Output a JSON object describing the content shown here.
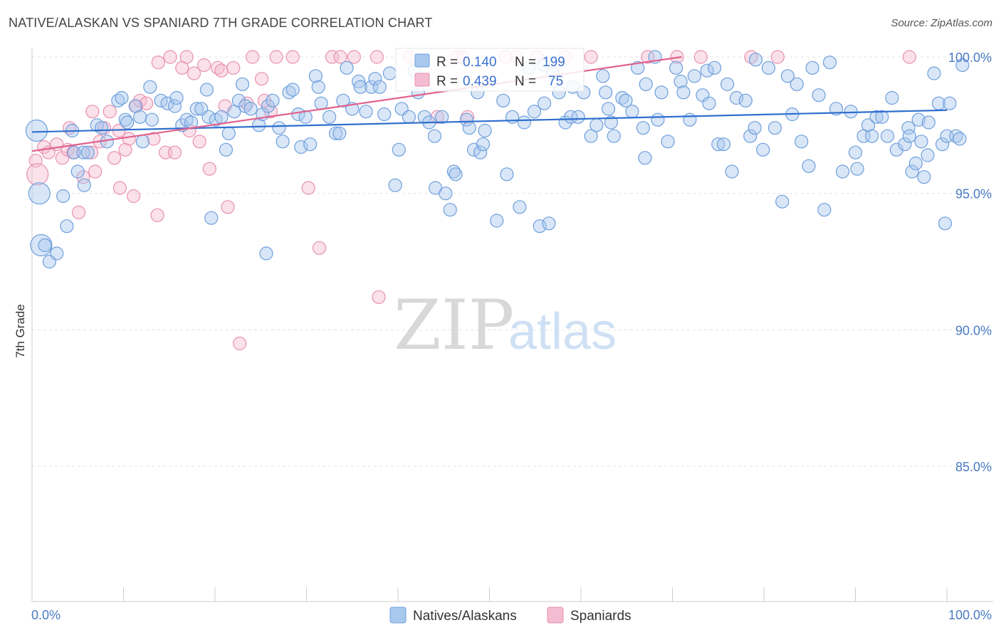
{
  "title": "NATIVE/ALASKAN VS SPANIARD 7TH GRADE CORRELATION CHART",
  "source": "Source: ZipAtlas.com",
  "watermark": {
    "zip": "ZIP",
    "atlas": "atlas"
  },
  "colors": {
    "blue_fill": "#a9c8ee",
    "blue_stroke": "#6f9fdc",
    "blue_line": "#2f6fce",
    "pink_fill": "#f4bcd0",
    "pink_stroke": "#e890b0",
    "pink_line": "#e0628e",
    "tick_text": "#4a7bc4",
    "grid": "#e3e3e3"
  },
  "legend_box": {
    "row1": {
      "r_label": "R =",
      "r_value": "0.140",
      "n_label": "N =",
      "n_value": "199"
    },
    "row2": {
      "r_label": "R =",
      "r_value": "0.439",
      "n_label": "N =",
      "n_value": "75"
    }
  },
  "chart_data": {
    "type": "scatter",
    "title": "NATIVE/ALASKAN VS SPANIARD 7TH GRADE CORRELATION CHART",
    "xlabel": "",
    "ylabel": "7th Grade",
    "xlim": [
      0,
      100
    ],
    "ylim": [
      80.5,
      101
    ],
    "x_tick_labels": [
      "0.0%",
      "100.0%"
    ],
    "y_ticks": [
      100,
      95,
      90,
      85
    ],
    "y_tick_labels": [
      "100.0%",
      "95.0%",
      "90.0%",
      "85.0%"
    ],
    "grid": true,
    "legend_position": "bottom-center",
    "series": [
      {
        "name": "Natives/Alaskans",
        "trend": {
          "x": [
            0,
            100
          ],
          "y": [
            97.25,
            98.05
          ]
        },
        "points": [
          [
            0.5,
            97.3
          ],
          [
            0.8,
            95.0
          ],
          [
            1.0,
            93.1
          ],
          [
            1.4,
            93.1
          ],
          [
            1.9,
            92.5
          ],
          [
            2.7,
            92.8
          ],
          [
            3.4,
            94.9
          ],
          [
            3.8,
            93.8
          ],
          [
            4.4,
            97.3
          ],
          [
            4.6,
            96.5
          ],
          [
            5.0,
            95.8
          ],
          [
            5.6,
            96.5
          ],
          [
            5.7,
            95.3
          ],
          [
            6.1,
            96.5
          ],
          [
            7.1,
            97.5
          ],
          [
            7.6,
            97.4
          ],
          [
            8.2,
            96.9
          ],
          [
            9.4,
            98.4
          ],
          [
            9.8,
            98.5
          ],
          [
            10.2,
            97.7
          ],
          [
            10.4,
            97.6
          ],
          [
            11.3,
            98.2
          ],
          [
            11.8,
            97.8
          ],
          [
            12.1,
            96.9
          ],
          [
            12.9,
            98.9
          ],
          [
            13.1,
            97.7
          ],
          [
            14.1,
            98.4
          ],
          [
            14.8,
            98.3
          ],
          [
            15.6,
            98.2
          ],
          [
            15.8,
            98.5
          ],
          [
            16.4,
            97.5
          ],
          [
            16.9,
            97.7
          ],
          [
            17.4,
            97.6
          ],
          [
            18.0,
            98.1
          ],
          [
            18.5,
            98.1
          ],
          [
            19.1,
            98.8
          ],
          [
            19.3,
            97.8
          ],
          [
            19.6,
            94.1
          ],
          [
            20.1,
            97.7
          ],
          [
            20.7,
            97.8
          ],
          [
            21.2,
            96.6
          ],
          [
            21.5,
            97.2
          ],
          [
            22.1,
            98.0
          ],
          [
            22.6,
            98.4
          ],
          [
            23.0,
            99.0
          ],
          [
            23.3,
            98.2
          ],
          [
            23.9,
            98.1
          ],
          [
            24.8,
            97.5
          ],
          [
            25.2,
            97.9
          ],
          [
            25.6,
            92.8
          ],
          [
            25.8,
            98.2
          ],
          [
            26.3,
            98.4
          ],
          [
            27.0,
            97.4
          ],
          [
            27.4,
            96.9
          ],
          [
            28.1,
            98.7
          ],
          [
            28.5,
            98.8
          ],
          [
            29.1,
            97.9
          ],
          [
            29.4,
            96.7
          ],
          [
            29.9,
            97.8
          ],
          [
            30.4,
            96.8
          ],
          [
            31.0,
            99.3
          ],
          [
            31.3,
            98.9
          ],
          [
            31.6,
            98.3
          ],
          [
            32.5,
            97.8
          ],
          [
            33.2,
            97.2
          ],
          [
            33.6,
            97.2
          ],
          [
            34.0,
            98.4
          ],
          [
            34.4,
            99.6
          ],
          [
            35.0,
            98.1
          ],
          [
            35.7,
            99.1
          ],
          [
            35.9,
            98.9
          ],
          [
            36.5,
            98.0
          ],
          [
            37.1,
            98.9
          ],
          [
            37.5,
            99.2
          ],
          [
            38.0,
            98.9
          ],
          [
            38.5,
            97.9
          ],
          [
            39.1,
            99.4
          ],
          [
            39.7,
            95.3
          ],
          [
            40.1,
            96.6
          ],
          [
            40.4,
            98.1
          ],
          [
            41.2,
            97.8
          ],
          [
            41.8,
            99.5
          ],
          [
            42.2,
            98.7
          ],
          [
            42.9,
            97.8
          ],
          [
            43.4,
            97.6
          ],
          [
            44.1,
            95.2
          ],
          [
            44.8,
            97.8
          ],
          [
            45.2,
            95.0
          ],
          [
            45.7,
            94.4
          ],
          [
            46.1,
            95.8
          ],
          [
            46.3,
            95.7
          ],
          [
            47.5,
            97.7
          ],
          [
            47.8,
            97.4
          ],
          [
            48.3,
            96.6
          ],
          [
            48.7,
            98.7
          ],
          [
            49.0,
            96.5
          ],
          [
            49.3,
            96.8
          ],
          [
            50.8,
            94.0
          ],
          [
            51.5,
            98.4
          ],
          [
            51.9,
            95.7
          ],
          [
            52.5,
            97.8
          ],
          [
            53.3,
            94.5
          ],
          [
            53.8,
            97.6
          ],
          [
            54.3,
            99.6
          ],
          [
            54.9,
            98.0
          ],
          [
            55.5,
            93.8
          ],
          [
            55.9,
            99.7
          ],
          [
            56.5,
            93.9
          ],
          [
            56.9,
            99.4
          ],
          [
            57.6,
            98.7
          ],
          [
            58.3,
            97.6
          ],
          [
            58.9,
            97.8
          ],
          [
            59.1,
            98.9
          ],
          [
            59.7,
            97.8
          ],
          [
            60.3,
            98.7
          ],
          [
            61.1,
            97.1
          ],
          [
            61.7,
            97.5
          ],
          [
            62.4,
            99.3
          ],
          [
            62.7,
            98.7
          ],
          [
            63.3,
            97.6
          ],
          [
            63.6,
            97.1
          ],
          [
            64.5,
            98.5
          ],
          [
            64.9,
            98.4
          ],
          [
            65.6,
            98.0
          ],
          [
            66.2,
            99.6
          ],
          [
            66.8,
            97.4
          ],
          [
            67.1,
            99.0
          ],
          [
            68.1,
            100.0
          ],
          [
            68.4,
            97.7
          ],
          [
            68.8,
            98.7
          ],
          [
            69.5,
            96.9
          ],
          [
            70.4,
            99.6
          ],
          [
            70.9,
            99.1
          ],
          [
            71.2,
            98.7
          ],
          [
            71.9,
            97.7
          ],
          [
            72.4,
            99.3
          ],
          [
            73.3,
            98.6
          ],
          [
            73.8,
            99.5
          ],
          [
            74.6,
            99.6
          ],
          [
            75.0,
            96.8
          ],
          [
            75.6,
            96.8
          ],
          [
            76.0,
            99.0
          ],
          [
            76.5,
            95.8
          ],
          [
            77.0,
            98.5
          ],
          [
            78.0,
            98.4
          ],
          [
            78.5,
            97.1
          ],
          [
            79.1,
            99.9
          ],
          [
            79.9,
            96.6
          ],
          [
            80.5,
            99.6
          ],
          [
            81.2,
            97.4
          ],
          [
            82.0,
            94.7
          ],
          [
            82.6,
            99.3
          ],
          [
            83.1,
            97.9
          ],
          [
            83.6,
            99.0
          ],
          [
            84.1,
            96.9
          ],
          [
            84.9,
            96.0
          ],
          [
            85.3,
            99.6
          ],
          [
            86.6,
            94.4
          ],
          [
            87.2,
            99.8
          ],
          [
            87.9,
            98.1
          ],
          [
            88.6,
            95.8
          ],
          [
            89.5,
            98.0
          ],
          [
            90.2,
            95.9
          ],
          [
            90.9,
            97.1
          ],
          [
            91.4,
            97.5
          ],
          [
            91.8,
            97.1
          ],
          [
            92.3,
            97.8
          ],
          [
            92.9,
            97.8
          ],
          [
            93.5,
            97.1
          ],
          [
            94.0,
            98.5
          ],
          [
            94.5,
            96.6
          ],
          [
            95.4,
            96.8
          ],
          [
            95.8,
            97.4
          ],
          [
            96.2,
            95.8
          ],
          [
            96.6,
            96.1
          ],
          [
            96.9,
            97.7
          ],
          [
            97.2,
            96.9
          ],
          [
            97.5,
            95.6
          ],
          [
            97.9,
            96.4
          ],
          [
            98.6,
            99.4
          ],
          [
            99.1,
            98.3
          ],
          [
            99.5,
            96.8
          ],
          [
            99.8,
            93.9
          ],
          [
            100.0,
            97.1
          ],
          [
            100.3,
            98.3
          ],
          [
            101.0,
            97.1
          ],
          [
            101.4,
            97.0
          ],
          [
            101.7,
            99.7
          ],
          [
            98.0,
            97.6
          ],
          [
            95.9,
            97.1
          ],
          [
            90.0,
            96.5
          ],
          [
            86.0,
            98.6
          ],
          [
            79.0,
            97.4
          ],
          [
            74.0,
            98.3
          ],
          [
            67.0,
            96.3
          ],
          [
            63.0,
            98.1
          ],
          [
            56.0,
            98.3
          ],
          [
            49.5,
            97.3
          ],
          [
            44.0,
            97.1
          ]
        ]
      },
      {
        "name": "Spaniards",
        "trend": {
          "x": [
            0,
            71
          ],
          "y": [
            96.55,
            100.0
          ]
        },
        "points": [
          [
            0.4,
            96.2
          ],
          [
            0.6,
            95.7
          ],
          [
            1.3,
            96.7
          ],
          [
            1.8,
            96.5
          ],
          [
            2.7,
            96.8
          ],
          [
            3.3,
            96.3
          ],
          [
            3.9,
            96.6
          ],
          [
            4.1,
            97.4
          ],
          [
            4.5,
            96.5
          ],
          [
            5.1,
            94.3
          ],
          [
            5.6,
            95.6
          ],
          [
            6.5,
            96.5
          ],
          [
            6.6,
            98.0
          ],
          [
            6.9,
            95.8
          ],
          [
            7.4,
            96.9
          ],
          [
            7.9,
            97.4
          ],
          [
            8.5,
            98.0
          ],
          [
            9.0,
            96.3
          ],
          [
            9.5,
            97.3
          ],
          [
            9.6,
            95.2
          ],
          [
            10.2,
            96.6
          ],
          [
            10.6,
            97.0
          ],
          [
            11.1,
            94.9
          ],
          [
            11.4,
            98.2
          ],
          [
            11.8,
            98.4
          ],
          [
            12.5,
            98.3
          ],
          [
            13.3,
            97.0
          ],
          [
            13.7,
            94.2
          ],
          [
            13.8,
            99.8
          ],
          [
            14.6,
            96.5
          ],
          [
            15.1,
            100.0
          ],
          [
            15.6,
            96.5
          ],
          [
            16.4,
            99.6
          ],
          [
            16.9,
            100.0
          ],
          [
            17.2,
            97.3
          ],
          [
            17.7,
            99.4
          ],
          [
            18.3,
            96.9
          ],
          [
            18.8,
            99.7
          ],
          [
            19.4,
            95.9
          ],
          [
            20.3,
            99.6
          ],
          [
            20.7,
            99.5
          ],
          [
            21.1,
            98.2
          ],
          [
            21.4,
            94.5
          ],
          [
            22.0,
            99.6
          ],
          [
            23.5,
            98.3
          ],
          [
            24.1,
            100.0
          ],
          [
            25.1,
            99.2
          ],
          [
            25.4,
            98.4
          ],
          [
            26.1,
            98.0
          ],
          [
            26.7,
            100.0
          ],
          [
            28.5,
            100.0
          ],
          [
            30.2,
            95.2
          ],
          [
            31.4,
            93.0
          ],
          [
            32.8,
            100.0
          ],
          [
            33.7,
            100.0
          ],
          [
            35.2,
            100.0
          ],
          [
            37.7,
            100.0
          ],
          [
            41.3,
            100.0
          ],
          [
            44.3,
            97.8
          ],
          [
            46.5,
            100.0
          ],
          [
            47.0,
            100.0
          ],
          [
            47.6,
            97.8
          ],
          [
            51.8,
            100.0
          ],
          [
            53.0,
            100.0
          ],
          [
            55.2,
            100.0
          ],
          [
            58.3,
            100.0
          ],
          [
            61.1,
            100.0
          ],
          [
            67.3,
            100.0
          ],
          [
            70.5,
            100.0
          ],
          [
            73.1,
            100.0
          ],
          [
            78.6,
            100.0
          ],
          [
            81.5,
            100.0
          ],
          [
            95.9,
            100.0
          ],
          [
            37.9,
            91.2
          ],
          [
            22.7,
            89.5
          ]
        ]
      }
    ]
  }
}
